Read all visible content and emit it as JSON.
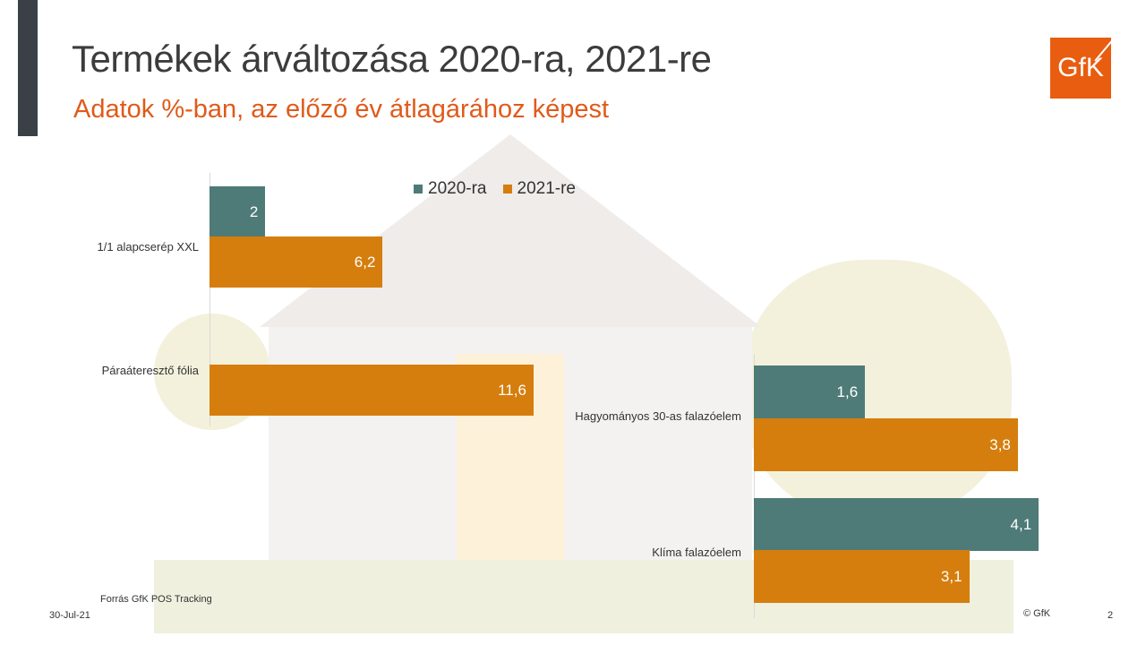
{
  "title": "Termékek árváltozása 2020-ra, 2021-re",
  "subtitle": "Adatok %-ban, az előző év átlagárához képest",
  "logo": "GfK",
  "footer": {
    "source": "Forrás GfK POS Tracking",
    "date": "30-Jul-21",
    "copyright": "© GfK",
    "page": "2"
  },
  "colors": {
    "s2020": "#4e7b78",
    "s2021": "#d57e0e"
  },
  "chart_data": [
    {
      "type": "bar",
      "orientation": "horizontal",
      "categories": [
        "1/1 alapcserép XXL",
        "Páraáteresztő fólia"
      ],
      "series": [
        {
          "name": "2020-ra",
          "values": [
            2,
            null
          ]
        },
        {
          "name": "2021-re",
          "values": [
            6.2,
            11.6
          ]
        }
      ],
      "labels": [
        [
          "2",
          ""
        ],
        [
          "6,2",
          "11,6"
        ]
      ],
      "legend": "top",
      "xlim": [
        0,
        12
      ]
    },
    {
      "type": "bar",
      "orientation": "horizontal",
      "categories": [
        "Hagyományos 30-as falazóelem",
        "Klíma falazóelem"
      ],
      "series": [
        {
          "name": "2020-ra",
          "values": [
            1.6,
            4.1
          ]
        },
        {
          "name": "2021-re",
          "values": [
            3.8,
            3.1
          ]
        }
      ],
      "labels": [
        [
          "1,6",
          "4,1"
        ],
        [
          "3,8",
          "3,1"
        ]
      ],
      "xlim": [
        0,
        5
      ]
    }
  ]
}
